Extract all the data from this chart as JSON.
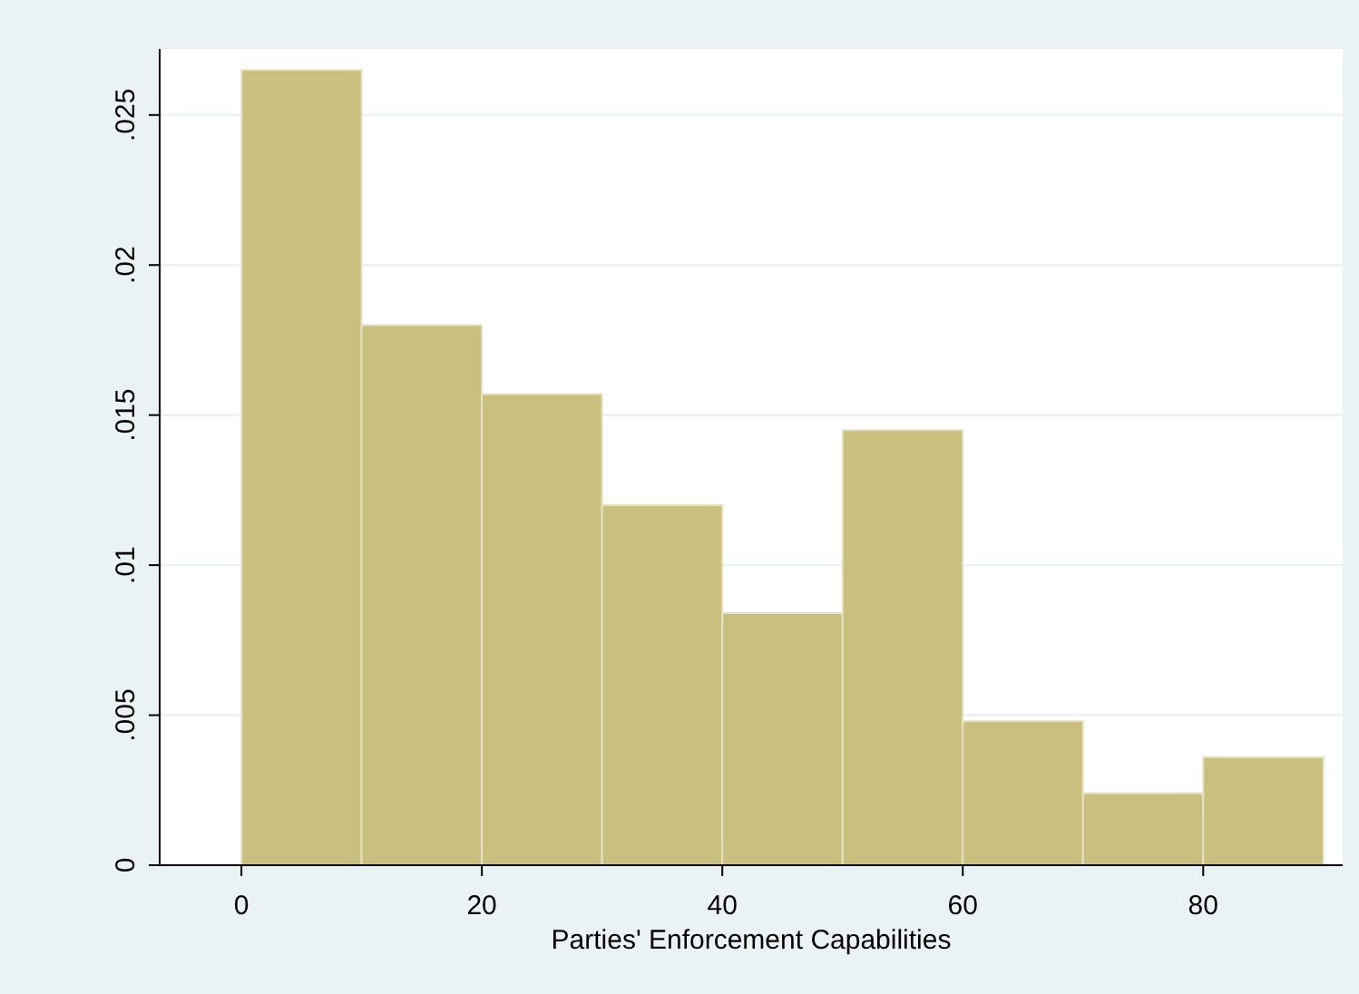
{
  "chart_data": {
    "type": "histogram",
    "xlabel": "Parties' Enforcement Capabilities",
    "bins": [
      0,
      10,
      20,
      30,
      40,
      50,
      60,
      70,
      80,
      90
    ],
    "values": [
      0.0265,
      0.018,
      0.0157,
      0.012,
      0.0084,
      0.0145,
      0.0048,
      0.0024,
      0.0036
    ],
    "color": "#c9bf7e",
    "xlim": [
      -6.8,
      91.6
    ],
    "xticks": [
      0,
      20,
      40,
      60,
      80
    ],
    "ylim": [
      0,
      0.0272
    ],
    "yticks": [
      0,
      {
        "value": 0.005,
        "label": ".005"
      },
      {
        "value": 0.01,
        "label": ".01"
      },
      {
        "value": 0.015,
        "label": ".015"
      },
      {
        "value": 0.02,
        "label": ".02"
      },
      {
        "value": 0.025,
        "label": ".025"
      }
    ],
    "grid": "y"
  }
}
